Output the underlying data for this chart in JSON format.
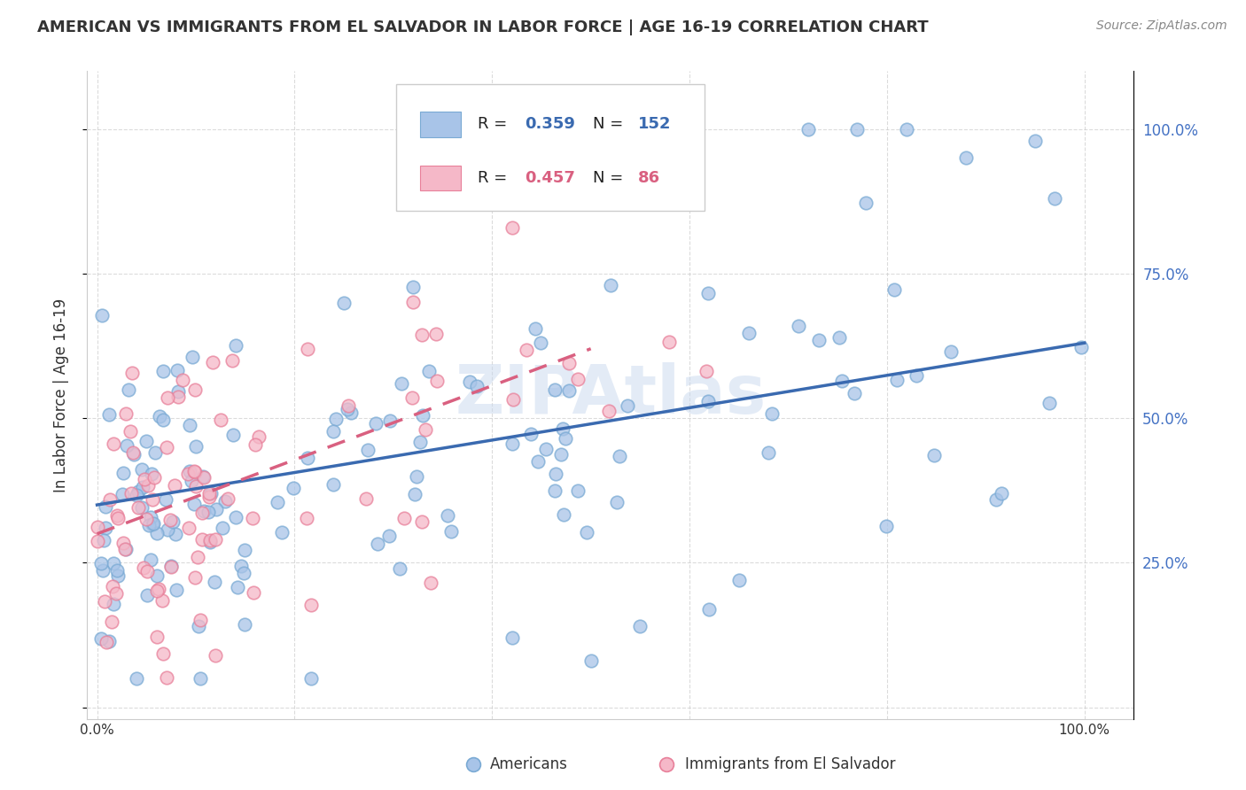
{
  "title": "AMERICAN VS IMMIGRANTS FROM EL SALVADOR IN LABOR FORCE | AGE 16-19 CORRELATION CHART",
  "source": "Source: ZipAtlas.com",
  "ylabel": "In Labor Force | Age 16-19",
  "americans_R": 0.359,
  "americans_N": 152,
  "salvador_R": 0.457,
  "salvador_N": 86,
  "americans_color": "#a8c4e8",
  "americans_edge_color": "#7aaad4",
  "salvador_color": "#f5b8c8",
  "salvador_edge_color": "#e8809a",
  "americans_line_color": "#3a6ab0",
  "salvador_line_color": "#d96080",
  "ytick_color": "#4472c4",
  "watermark_color": "#c8d8ee",
  "legend_box_edge": "#cccccc",
  "grid_color": "#cccccc",
  "title_color": "#333333",
  "source_color": "#888888",
  "label_color": "#333333"
}
